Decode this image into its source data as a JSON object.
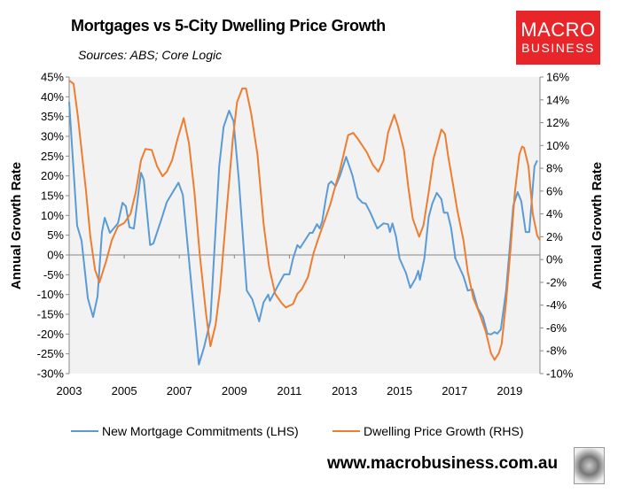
{
  "logo": {
    "line1": "MACRO",
    "line2": "BUSINESS"
  },
  "footer": {
    "url": "www.macrobusiness.com.au",
    "mascot": "wolf-image"
  },
  "chart_data": {
    "type": "line",
    "title": "Mortgages vs 5-City Dwelling Price Growth",
    "subtitle": "Sources: ABS; Core Logic",
    "xlabel": "",
    "ylabel_left": "Annual Growth Rate",
    "ylabel_right": "Annual Growth Rate",
    "xlim": [
      2003,
      2020.1
    ],
    "x_ticks": [
      "2003",
      "2005",
      "2007",
      "2009",
      "2011",
      "2013",
      "2015",
      "2017",
      "2019"
    ],
    "ylim_left": [
      -30,
      45
    ],
    "yticks_left": [
      "45%",
      "40%",
      "35%",
      "30%",
      "25%",
      "20%",
      "15%",
      "10%",
      "5%",
      "0%",
      "-5%",
      "-10%",
      "-15%",
      "-20%",
      "-25%",
      "-30%"
    ],
    "ylim_right": [
      -10,
      16
    ],
    "yticks_right": [
      "16%",
      "14%",
      "12%",
      "10%",
      "8%",
      "6%",
      "4%",
      "2%",
      "0%",
      "-2%",
      "-4%",
      "-6%",
      "-8%",
      "-10%"
    ],
    "grid": false,
    "legend": "bottom",
    "series": [
      {
        "name": "New Mortgage Commitments (LHS)",
        "axis": "left",
        "color": "#5b9bd5",
        "x": [
          2003.0,
          2003.29,
          2003.45,
          2003.68,
          2003.87,
          2004.03,
          2004.19,
          2004.29,
          2004.48,
          2004.77,
          2004.94,
          2005.06,
          2005.19,
          2005.35,
          2005.61,
          2005.71,
          2005.94,
          2006.06,
          2006.35,
          2006.55,
          2006.97,
          2007.13,
          2007.32,
          2007.71,
          2007.9,
          2008.13,
          2008.45,
          2008.61,
          2008.81,
          2008.97,
          2009.16,
          2009.45,
          2009.65,
          2009.9,
          2010.06,
          2010.23,
          2010.29,
          2010.58,
          2010.81,
          2011.0,
          2011.13,
          2011.29,
          2011.39,
          2011.74,
          2011.84,
          2012.0,
          2012.1,
          2012.19,
          2012.32,
          2012.42,
          2012.52,
          2012.68,
          2012.84,
          2013.06,
          2013.29,
          2013.48,
          2013.65,
          2013.77,
          2013.94,
          2014.19,
          2014.42,
          2014.58,
          2014.65,
          2014.74,
          2014.87,
          2015.0,
          2015.23,
          2015.39,
          2015.58,
          2015.68,
          2015.74,
          2015.9,
          2016.06,
          2016.19,
          2016.35,
          2016.52,
          2016.61,
          2016.74,
          2016.87,
          2017.03,
          2017.32,
          2017.48,
          2017.65,
          2017.84,
          2018.03,
          2018.19,
          2018.32,
          2018.45,
          2018.55,
          2018.68,
          2018.87,
          2019.13,
          2019.29,
          2019.42,
          2019.58,
          2019.71,
          2019.9,
          2020.0
        ],
        "values": [
          38.7,
          7.4,
          3.6,
          -11.0,
          -15.7,
          -10.5,
          5.8,
          9.4,
          5.6,
          8.0,
          13.2,
          12.3,
          7.0,
          6.7,
          20.8,
          19.0,
          2.5,
          2.9,
          9.0,
          13.4,
          18.3,
          15.2,
          1.3,
          -27.7,
          -23.3,
          -16.6,
          22.4,
          32.4,
          36.5,
          33.8,
          19.2,
          -9.0,
          -11.2,
          -16.8,
          -12.0,
          -10.0,
          -11.6,
          -7.8,
          -4.9,
          -4.9,
          -0.9,
          2.5,
          1.8,
          5.6,
          5.6,
          7.8,
          6.7,
          8.5,
          14.1,
          17.9,
          18.6,
          17.4,
          20.1,
          24.8,
          20.1,
          14.5,
          13.2,
          13.0,
          10.7,
          6.7,
          8.0,
          7.8,
          5.8,
          8.0,
          4.7,
          -0.9,
          -4.5,
          -8.3,
          -6.0,
          -4.0,
          -6.3,
          -0.9,
          9.6,
          13.0,
          15.7,
          14.1,
          10.7,
          10.7,
          6.9,
          -0.9,
          -5.4,
          -9.0,
          -8.7,
          -13.4,
          -15.7,
          -19.9,
          -20.1,
          -19.5,
          -19.9,
          -18.8,
          -9.0,
          12.5,
          15.9,
          13.6,
          5.8,
          5.8,
          22.4,
          23.9
        ]
      },
      {
        "name": "Dwelling Price Growth (RHS)",
        "axis": "right",
        "color": "#ed7d31",
        "x": [
          2003.0,
          2003.16,
          2003.32,
          2003.61,
          2003.77,
          2003.94,
          2004.1,
          2004.35,
          2004.55,
          2004.77,
          2005.0,
          2005.23,
          2005.42,
          2005.61,
          2005.77,
          2006.0,
          2006.19,
          2006.39,
          2006.55,
          2006.74,
          2006.94,
          2007.16,
          2007.35,
          2007.55,
          2007.74,
          2007.97,
          2008.13,
          2008.32,
          2008.48,
          2008.71,
          2008.94,
          2009.1,
          2009.29,
          2009.42,
          2009.61,
          2009.84,
          2010.06,
          2010.26,
          2010.48,
          2010.71,
          2010.87,
          2011.13,
          2011.29,
          2011.45,
          2011.68,
          2011.87,
          2012.03,
          2012.19,
          2012.48,
          2012.65,
          2012.84,
          2013.13,
          2013.32,
          2013.48,
          2013.81,
          2014.03,
          2014.23,
          2014.42,
          2014.58,
          2014.81,
          2014.94,
          2015.16,
          2015.32,
          2015.48,
          2015.71,
          2015.87,
          2016.06,
          2016.23,
          2016.52,
          2016.65,
          2016.77,
          2016.94,
          2017.1,
          2017.32,
          2017.48,
          2017.68,
          2017.9,
          2018.13,
          2018.32,
          2018.45,
          2018.61,
          2018.71,
          2018.87,
          2019.03,
          2019.19,
          2019.35,
          2019.45,
          2019.52,
          2019.68,
          2019.84,
          2020.0,
          2020.1
        ],
        "values": [
          15.7,
          15.4,
          12.5,
          6.1,
          2.0,
          -0.9,
          -2.0,
          -0.1,
          1.7,
          2.9,
          3.2,
          4.0,
          5.9,
          8.7,
          9.7,
          9.6,
          8.2,
          7.3,
          7.7,
          8.7,
          10.6,
          12.4,
          10.2,
          5.9,
          0.5,
          -4.7,
          -7.6,
          -5.7,
          -2.6,
          4.0,
          10.5,
          13.8,
          15.0,
          15.0,
          12.8,
          9.2,
          3.2,
          -0.6,
          -3.0,
          -3.8,
          -4.2,
          -3.9,
          -3.0,
          -2.6,
          -1.5,
          0.5,
          1.7,
          2.8,
          4.8,
          6.3,
          7.9,
          10.9,
          11.1,
          10.6,
          9.4,
          8.3,
          7.7,
          8.7,
          11.1,
          12.7,
          11.7,
          9.6,
          6.3,
          3.6,
          2.0,
          3.0,
          5.9,
          8.8,
          11.4,
          11.0,
          9.0,
          6.6,
          4.3,
          1.7,
          -1.1,
          -3.4,
          -4.7,
          -6.3,
          -8.2,
          -8.8,
          -8.2,
          -7.4,
          -3.7,
          0.9,
          5.9,
          9.2,
          9.9,
          9.8,
          8.2,
          4.0,
          2.1,
          1.7
        ]
      }
    ]
  }
}
